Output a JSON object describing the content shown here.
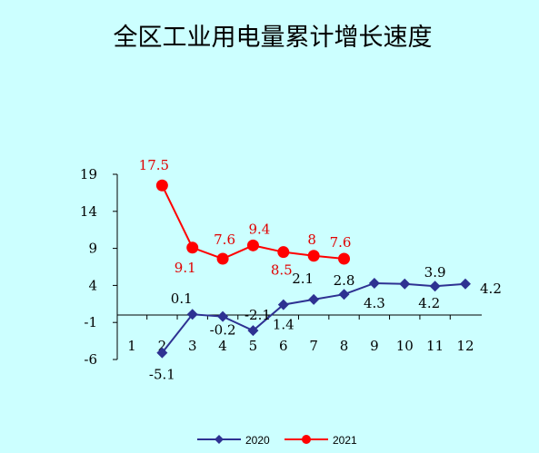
{
  "chart_data": {
    "type": "line",
    "title": "全区工业用电量累计增长速度",
    "xlabel": "",
    "ylabel": "",
    "categories": [
      "1",
      "2",
      "3",
      "4",
      "5",
      "6",
      "7",
      "8",
      "9",
      "10",
      "11",
      "12"
    ],
    "y_ticks": [
      "19",
      "14",
      "9",
      "4",
      "-1",
      "-6"
    ],
    "ylim": [
      -6,
      19
    ],
    "grid": false,
    "legend_position": "bottom",
    "colors": {
      "s2020": "#2e3192",
      "s2021": "#ff0000",
      "background": "#ccffff"
    },
    "series": [
      {
        "name": "2020",
        "values": [
          null,
          -5.1,
          0.1,
          -0.2,
          -2.1,
          1.4,
          2.1,
          2.8,
          4.3,
          4.2,
          3.9,
          4.2
        ],
        "labels": [
          null,
          "-5.1",
          "0.1",
          "-0.2",
          "-2.1",
          "1.4",
          "2.1",
          "2.8",
          "4.3",
          "4.2",
          "3.9",
          "4.2"
        ]
      },
      {
        "name": "2021",
        "values": [
          null,
          17.5,
          9.1,
          7.6,
          9.4,
          8.5,
          8,
          7.6,
          null,
          null,
          null,
          null
        ],
        "labels": [
          null,
          "17.5",
          "9.1",
          "7.6",
          "9.4",
          "8.5",
          "8",
          "7.6",
          null,
          null,
          null,
          null
        ]
      }
    ]
  }
}
